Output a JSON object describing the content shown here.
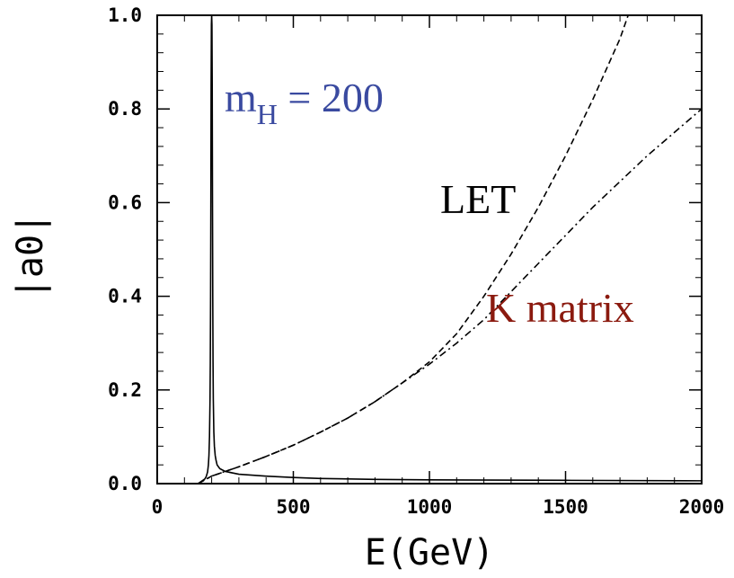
{
  "chart_data": {
    "type": "line",
    "title": "",
    "xlabel": "E(GeV)",
    "ylabel": "|a0|",
    "xlim": [
      0,
      2000
    ],
    "ylim": [
      0.0,
      1.0
    ],
    "xticks": [
      "0",
      "500",
      "1000",
      "1500",
      "2000"
    ],
    "yticks": [
      "0.0",
      "0.2",
      "0.4",
      "0.6",
      "0.8",
      "1.0"
    ],
    "annotations": {
      "higgs_m": "m",
      "higgs_sub": "H",
      "higgs_eq": " = 200",
      "let": "LET",
      "kmatrix": "K matrix"
    },
    "colors": {
      "higgs": "#3a4aa0",
      "let": "#000000",
      "kmatrix": "#8b1a0f"
    },
    "series": [
      {
        "style": "solid",
        "x": [
          0,
          150,
          175,
          180,
          185,
          188,
          190,
          192,
          194,
          195,
          196,
          197,
          198,
          199,
          200,
          201,
          202,
          203,
          204,
          205,
          206,
          208,
          210,
          213,
          216,
          220,
          230,
          250,
          300,
          400,
          500,
          600,
          800,
          1000,
          1500,
          2000
        ],
        "y": [
          0.0,
          0.0,
          0.01,
          0.015,
          0.025,
          0.04,
          0.06,
          0.1,
          0.18,
          0.26,
          0.4,
          0.6,
          0.85,
          0.98,
          1.0,
          0.98,
          0.85,
          0.6,
          0.4,
          0.26,
          0.18,
          0.11,
          0.08,
          0.06,
          0.05,
          0.04,
          0.032,
          0.026,
          0.02,
          0.016,
          0.013,
          0.011,
          0.009,
          0.008,
          0.007,
          0.006
        ]
      },
      {
        "style": "dashed",
        "x": [
          150,
          200,
          300,
          400,
          500,
          600,
          700,
          800,
          900,
          1000,
          1100,
          1200,
          1300,
          1400,
          1500,
          1600,
          1700,
          1730
        ],
        "y": [
          0.0,
          0.016,
          0.036,
          0.058,
          0.082,
          0.11,
          0.14,
          0.175,
          0.215,
          0.26,
          0.32,
          0.4,
          0.49,
          0.59,
          0.7,
          0.82,
          0.95,
          1.0
        ]
      },
      {
        "style": "dashdot",
        "x": [
          150,
          200,
          300,
          400,
          500,
          600,
          700,
          800,
          900,
          1000,
          1100,
          1200,
          1300,
          1400,
          1500,
          1600,
          1700,
          1800,
          1900,
          2000
        ],
        "y": [
          0.0,
          0.016,
          0.036,
          0.058,
          0.082,
          0.11,
          0.14,
          0.175,
          0.215,
          0.255,
          0.3,
          0.35,
          0.41,
          0.47,
          0.53,
          0.59,
          0.645,
          0.7,
          0.75,
          0.8
        ]
      }
    ]
  }
}
